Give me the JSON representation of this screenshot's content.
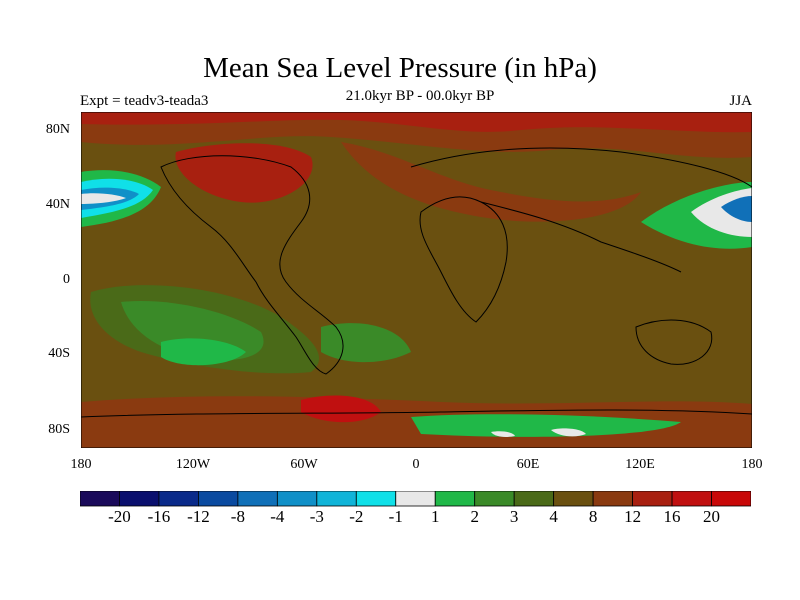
{
  "title": "Mean Sea Level Pressure (in hPa)",
  "subtitle": "21.0kyr BP - 00.0kyr BP",
  "left_label": "Expt = teadv3-teada3",
  "right_label": "JJA",
  "lat_ticks": [
    "80N",
    "40N",
    "0",
    "40S",
    "80S"
  ],
  "lon_ticks": [
    "180",
    "120W",
    "60W",
    "0",
    "60E",
    "120E",
    "180"
  ],
  "colorbar": {
    "labels": [
      "-20",
      "-16",
      "-12",
      "-8",
      "-4",
      "-3",
      "-2",
      "-1",
      "1",
      "2",
      "3",
      "4",
      "8",
      "12",
      "16",
      "20"
    ],
    "colors": [
      "#1a0a5a",
      "#0a0f6e",
      "#0a2a8a",
      "#0a4aa0",
      "#1070b8",
      "#1090c8",
      "#10b4d8",
      "#10e0e8",
      "#e8e8e8",
      "#20b848",
      "#3a8a28",
      "#4a6a18",
      "#6a5010",
      "#8a3a10",
      "#a82010",
      "#c01010",
      "#c80808"
    ]
  }
}
